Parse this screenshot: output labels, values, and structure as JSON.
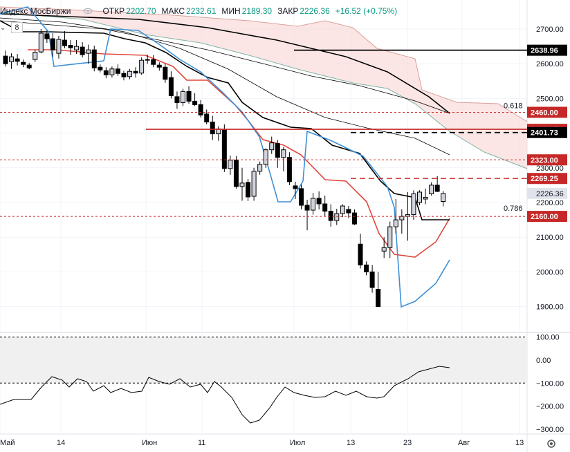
{
  "legend": {
    "title": "Индекс МосБиржи",
    "open_label": "ОТКР",
    "open": "2202.70",
    "high_label": "МАКС",
    "high": "2232.61",
    "low_label": "МИН",
    "low": "2189.30",
    "close_label": "ЗАКР",
    "close": "2226.36",
    "change": "+16.52 (+0.75%)",
    "sub_value": "8",
    "eye_icon": "eye-icon"
  },
  "colors": {
    "up": "#089981",
    "down": "#000000",
    "up_body": "#d1d4dc",
    "red_line": "#e0463a",
    "blue_line": "#3d8fd6",
    "badge_red": "#c62828",
    "cloud_fill": "#f8d6d3"
  },
  "chart_data": {
    "type": "candlestick",
    "x_ticks": [
      "Май",
      "14",
      "Июн",
      "11",
      "Июл",
      "13",
      "23",
      "Авг",
      "13"
    ],
    "y_ticks": [
      "2700.00",
      "2600.00",
      "2500.00",
      "2400.00",
      "2300.00",
      "2200.00",
      "2100.00",
      "2000.00",
      "1900.00"
    ],
    "ylim": [
      1865,
      2760
    ],
    "candles": [
      [
        2622,
        2638,
        2592,
        2600
      ],
      [
        2606,
        2630,
        2585,
        2620
      ],
      [
        2614,
        2628,
        2595,
        2607
      ],
      [
        2604,
        2612,
        2590,
        2598
      ],
      [
        2596,
        2602,
        2584,
        2588
      ],
      [
        2612,
        2640,
        2605,
        2633
      ],
      [
        2634,
        2700,
        2630,
        2688
      ],
      [
        2686,
        2695,
        2660,
        2672
      ],
      [
        2672,
        2688,
        2620,
        2640
      ],
      [
        2630,
        2680,
        2615,
        2670
      ],
      [
        2668,
        2694,
        2645,
        2652
      ],
      [
        2653,
        2668,
        2625,
        2646
      ],
      [
        2640,
        2668,
        2628,
        2650
      ],
      [
        2648,
        2662,
        2618,
        2626
      ],
      [
        2630,
        2655,
        2600,
        2640
      ],
      [
        2640,
        2652,
        2578,
        2588
      ],
      [
        2590,
        2598,
        2575,
        2582
      ],
      [
        2580,
        2590,
        2558,
        2568
      ],
      [
        2568,
        2592,
        2560,
        2585
      ],
      [
        2585,
        2598,
        2565,
        2572
      ],
      [
        2572,
        2580,
        2552,
        2562
      ],
      [
        2563,
        2585,
        2555,
        2578
      ],
      [
        2578,
        2590,
        2560,
        2573
      ],
      [
        2573,
        2618,
        2568,
        2610
      ],
      [
        2610,
        2626,
        2600,
        2612
      ],
      [
        2612,
        2625,
        2590,
        2598
      ],
      [
        2596,
        2604,
        2580,
        2590
      ],
      [
        2590,
        2600,
        2545,
        2555
      ],
      [
        2560,
        2578,
        2500,
        2508
      ],
      [
        2505,
        2520,
        2470,
        2488
      ],
      [
        2488,
        2528,
        2478,
        2520
      ],
      [
        2520,
        2535,
        2485,
        2492
      ],
      [
        2492,
        2515,
        2478,
        2482
      ],
      [
        2482,
        2495,
        2445,
        2452
      ],
      [
        2455,
        2468,
        2425,
        2432
      ],
      [
        2432,
        2450,
        2380,
        2398
      ],
      [
        2398,
        2420,
        2378,
        2412
      ],
      [
        2410,
        2425,
        2288,
        2298
      ],
      [
        2298,
        2335,
        2280,
        2322
      ],
      [
        2322,
        2334,
        2240,
        2246
      ],
      [
        2246,
        2300,
        2205,
        2256
      ],
      [
        2258,
        2268,
        2204,
        2216
      ],
      [
        2218,
        2300,
        2205,
        2290
      ],
      [
        2290,
        2318,
        2280,
        2310
      ],
      [
        2310,
        2356,
        2300,
        2352
      ],
      [
        2352,
        2390,
        2340,
        2372
      ],
      [
        2370,
        2380,
        2300,
        2330
      ],
      [
        2330,
        2360,
        2290,
        2352
      ],
      [
        2330,
        2345,
        2250,
        2260
      ],
      [
        2248,
        2260,
        2210,
        2240
      ],
      [
        2240,
        2252,
        2180,
        2192
      ],
      [
        2192,
        2208,
        2120,
        2178
      ],
      [
        2178,
        2228,
        2165,
        2212
      ],
      [
        2212,
        2232,
        2180,
        2196
      ],
      [
        2196,
        2220,
        2160,
        2175
      ],
      [
        2175,
        2195,
        2130,
        2148
      ],
      [
        2148,
        2182,
        2135,
        2168
      ],
      [
        2168,
        2195,
        2158,
        2190
      ],
      [
        2180,
        2190,
        2155,
        2170
      ],
      [
        2170,
        2180,
        2135,
        2138
      ],
      [
        2080,
        2110,
        2010,
        2020
      ],
      [
        2020,
        2030,
        1990,
        2000
      ],
      [
        2000,
        2020,
        1940,
        1955
      ],
      [
        1950,
        2000,
        1900,
        1900
      ],
      [
        2060,
        2100,
        2040,
        2070
      ],
      [
        2070,
        2145,
        2040,
        2130
      ],
      [
        2130,
        2210,
        2110,
        2150
      ],
      [
        2150,
        2180,
        2110,
        2160
      ],
      [
        2160,
        2230,
        2090,
        2165
      ],
      [
        2165,
        2235,
        2150,
        2225
      ],
      [
        2200,
        2235,
        2192,
        2230
      ],
      [
        2210,
        2240,
        2195,
        2215
      ],
      [
        2225,
        2258,
        2220,
        2250
      ],
      [
        2250,
        2276,
        2230,
        2232
      ],
      [
        2203,
        2233,
        2189,
        2226
      ]
    ],
    "indicator": {
      "y_ticks": [
        "100.00",
        "0.00",
        "−100.00",
        "−200.00",
        "−300.00"
      ],
      "band": [
        -100,
        100
      ]
    },
    "price_labels": [
      "2638.96",
      "2460.00",
      "2410.97",
      "2401.73",
      "2323.00",
      "2269.25",
      "2226.36",
      "2160.00"
    ],
    "fib_labels": [
      "0.618",
      "0.786"
    ]
  }
}
